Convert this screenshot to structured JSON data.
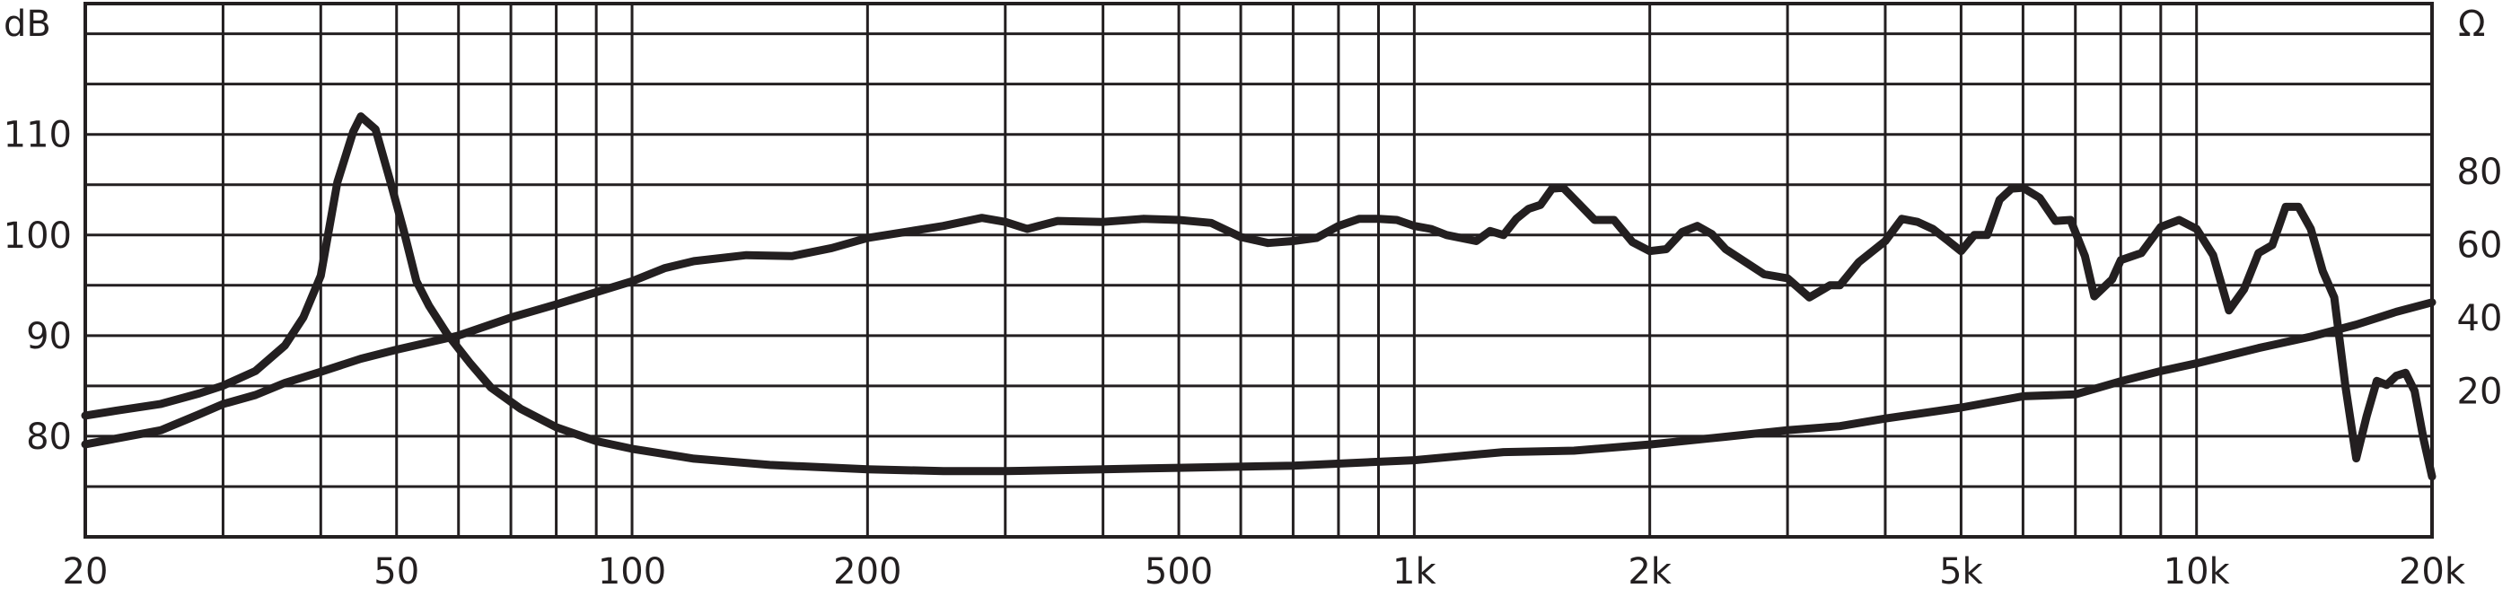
{
  "chart_data": {
    "type": "line",
    "title": "",
    "x_scale": "log",
    "xlim": [
      20,
      20000
    ],
    "x_ticks": [
      20,
      50,
      100,
      200,
      500,
      1000,
      2000,
      5000,
      10000,
      20000
    ],
    "x_tick_labels": [
      "20",
      "50",
      "100",
      "200",
      "500",
      "1k",
      "2k",
      "5k",
      "10k",
      "20k"
    ],
    "grid": true,
    "left_axis": {
      "unit": "dB",
      "ylim": [
        70,
        123
      ],
      "ticks": [
        80,
        90,
        100,
        110
      ],
      "tick_labels": [
        "80",
        "90",
        "100",
        "110"
      ]
    },
    "right_axis": {
      "unit": "Ω",
      "ylim": [
        -20,
        126
      ],
      "ticks": [
        20,
        40,
        60,
        80
      ],
      "tick_labels": [
        "20",
        "40",
        "60",
        "80"
      ]
    },
    "series": [
      {
        "axis": "left",
        "points": [
          [
            20,
            79.2
          ],
          [
            22,
            79.8
          ],
          [
            25,
            80.6
          ],
          [
            28,
            82.2
          ],
          [
            30,
            83.2
          ],
          [
            33,
            84.1
          ],
          [
            36,
            85.3
          ],
          [
            40,
            86.4
          ],
          [
            45,
            87.7
          ],
          [
            50,
            88.6
          ],
          [
            60,
            90.0
          ],
          [
            70,
            91.8
          ],
          [
            80,
            93.1
          ],
          [
            100,
            95.4
          ],
          [
            110,
            96.7
          ],
          [
            120,
            97.4
          ],
          [
            140,
            98.0
          ],
          [
            160,
            97.9
          ],
          [
            180,
            98.7
          ],
          [
            200,
            99.7
          ],
          [
            250,
            100.9
          ],
          [
            280,
            101.7
          ],
          [
            300,
            101.3
          ],
          [
            320,
            100.6
          ],
          [
            350,
            101.4
          ],
          [
            400,
            101.3
          ],
          [
            450,
            101.6
          ],
          [
            500,
            101.5
          ],
          [
            550,
            101.2
          ],
          [
            600,
            99.8
          ],
          [
            650,
            99.2
          ],
          [
            700,
            99.4
          ],
          [
            750,
            99.7
          ],
          [
            800,
            100.9
          ],
          [
            850,
            101.6
          ],
          [
            900,
            101.6
          ],
          [
            950,
            101.5
          ],
          [
            1000,
            100.9
          ],
          [
            1050,
            100.6
          ],
          [
            1100,
            100.0
          ],
          [
            1200,
            99.4
          ],
          [
            1250,
            100.4
          ],
          [
            1300,
            100.0
          ],
          [
            1350,
            101.6
          ],
          [
            1400,
            102.6
          ],
          [
            1450,
            103.0
          ],
          [
            1500,
            104.6
          ],
          [
            1550,
            104.7
          ],
          [
            1600,
            103.6
          ],
          [
            1700,
            101.5
          ],
          [
            1800,
            101.5
          ],
          [
            1900,
            99.3
          ],
          [
            2000,
            98.4
          ],
          [
            2100,
            98.6
          ],
          [
            2200,
            100.3
          ],
          [
            2300,
            100.9
          ],
          [
            2400,
            100.1
          ],
          [
            2500,
            98.6
          ],
          [
            2800,
            96.1
          ],
          [
            3000,
            95.7
          ],
          [
            3200,
            93.8
          ],
          [
            3400,
            95.0
          ],
          [
            3500,
            95.0
          ],
          [
            3700,
            97.3
          ],
          [
            4000,
            99.4
          ],
          [
            4200,
            101.6
          ],
          [
            4400,
            101.3
          ],
          [
            4600,
            100.6
          ],
          [
            4800,
            99.5
          ],
          [
            5000,
            98.4
          ],
          [
            5200,
            100.0
          ],
          [
            5400,
            100.0
          ],
          [
            5600,
            103.5
          ],
          [
            5800,
            104.6
          ],
          [
            6000,
            104.7
          ],
          [
            6300,
            103.7
          ],
          [
            6600,
            101.4
          ],
          [
            6900,
            101.5
          ],
          [
            7200,
            97.9
          ],
          [
            7400,
            93.9
          ],
          [
            7800,
            95.6
          ],
          [
            8000,
            97.5
          ],
          [
            8500,
            98.2
          ],
          [
            9000,
            100.8
          ],
          [
            9500,
            101.5
          ],
          [
            10000,
            100.6
          ],
          [
            10500,
            98.0
          ],
          [
            11000,
            92.5
          ],
          [
            11500,
            94.6
          ],
          [
            12000,
            98.2
          ],
          [
            12500,
            99.0
          ],
          [
            13000,
            102.8
          ],
          [
            13500,
            102.8
          ],
          [
            14000,
            100.6
          ],
          [
            14500,
            96.4
          ],
          [
            15000,
            93.8
          ],
          [
            15500,
            85.0
          ],
          [
            16000,
            77.8
          ],
          [
            16500,
            82.0
          ],
          [
            17000,
            85.5
          ],
          [
            17500,
            85.1
          ],
          [
            18000,
            86.0
          ],
          [
            18500,
            86.3
          ],
          [
            19000,
            84.5
          ],
          [
            19500,
            79.8
          ],
          [
            20000,
            76.0
          ]
        ]
      },
      {
        "axis": "right",
        "points": [
          [
            20,
            13.2
          ],
          [
            22,
            14.6
          ],
          [
            25,
            16.4
          ],
          [
            28,
            19.3
          ],
          [
            30,
            21.4
          ],
          [
            33,
            25.4
          ],
          [
            36,
            32.4
          ],
          [
            38,
            40.1
          ],
          [
            40,
            51.5
          ],
          [
            42,
            77.1
          ],
          [
            44,
            90.9
          ],
          [
            45,
            95.1
          ],
          [
            47,
            91.6
          ],
          [
            49,
            77.9
          ],
          [
            51,
            64.3
          ],
          [
            53,
            50.0
          ],
          [
            55,
            43.3
          ],
          [
            58,
            35.6
          ],
          [
            62,
            27.7
          ],
          [
            66,
            20.9
          ],
          [
            72,
            15.1
          ],
          [
            80,
            10.0
          ],
          [
            90,
            6.2
          ],
          [
            100,
            4.1
          ],
          [
            120,
            1.4
          ],
          [
            150,
            -0.3
          ],
          [
            200,
            -1.5
          ],
          [
            250,
            -2.0
          ],
          [
            300,
            -2.0
          ],
          [
            400,
            -1.5
          ],
          [
            500,
            -1.1
          ],
          [
            700,
            -0.5
          ],
          [
            1000,
            1.0
          ],
          [
            1300,
            3.2
          ],
          [
            1600,
            3.6
          ],
          [
            2000,
            5.3
          ],
          [
            2500,
            7.4
          ],
          [
            3000,
            9.2
          ],
          [
            3500,
            10.3
          ],
          [
            4000,
            12.4
          ],
          [
            5000,
            15.4
          ],
          [
            6000,
            18.5
          ],
          [
            7000,
            19.0
          ],
          [
            8000,
            22.6
          ],
          [
            9000,
            25.4
          ],
          [
            10000,
            27.5
          ],
          [
            12000,
            31.7
          ],
          [
            14000,
            34.8
          ],
          [
            16000,
            38.1
          ],
          [
            18000,
            41.6
          ],
          [
            20000,
            44.2
          ]
        ]
      }
    ]
  }
}
